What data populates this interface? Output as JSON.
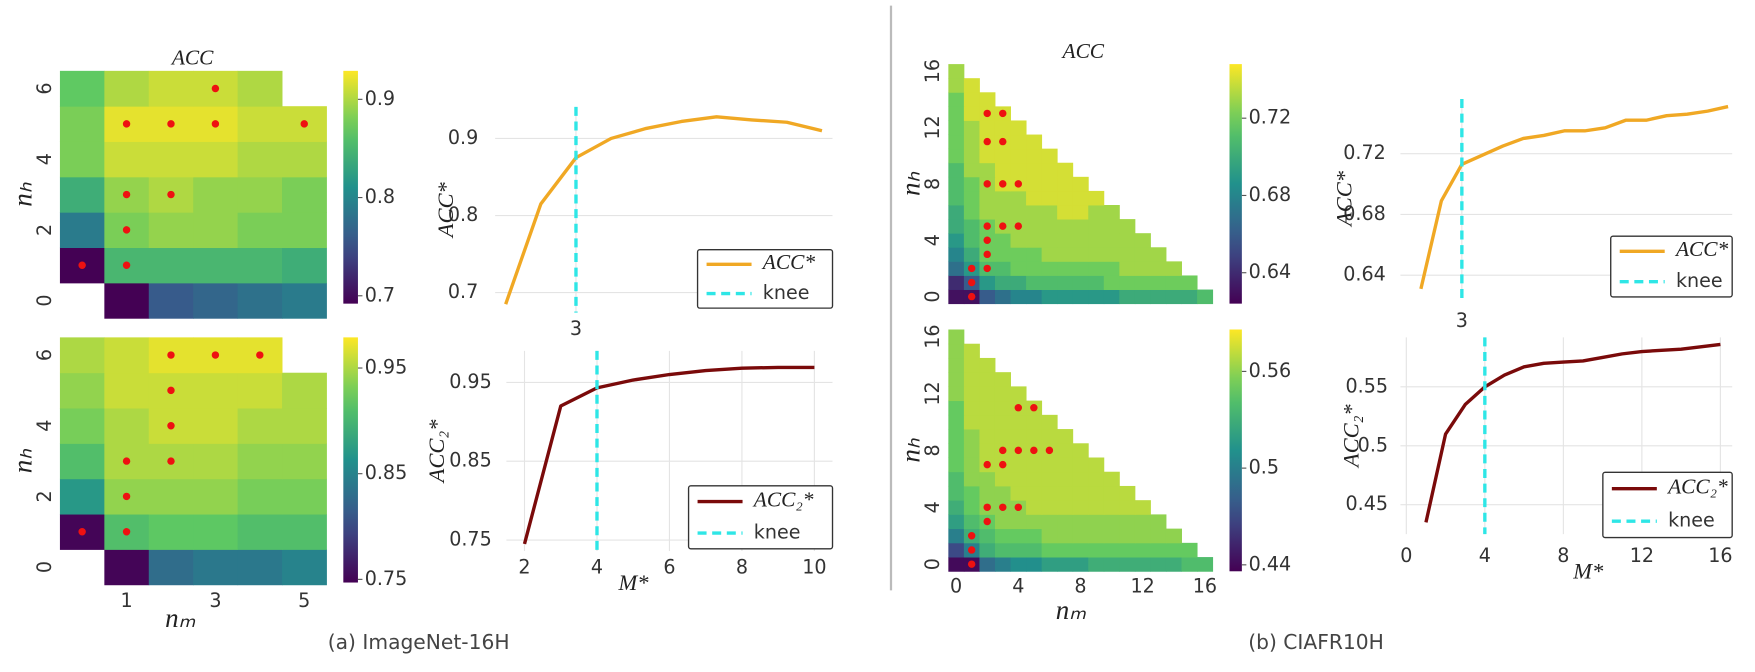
{
  "captions": [
    "(a) ImageNet-16H",
    "(b) CIAFR10H"
  ],
  "chart_data": [
    {
      "type": "heatmap",
      "title": "ACC",
      "ylabel": "nₕ",
      "colormap": "viridis",
      "xlim": [
        -0.5,
        5.5
      ],
      "ylim": [
        -0.5,
        6.5
      ],
      "yticks": [
        0,
        2,
        4,
        6
      ],
      "clim": [
        0.692,
        0.929
      ],
      "cticks": [
        0.7,
        0.8,
        0.9
      ],
      "marker_color": "#ee1111",
      "values": [
        [
          null,
          0.69,
          0.76,
          0.77,
          0.78,
          0.79
        ],
        [
          0.68,
          0.85,
          0.85,
          0.85,
          0.85,
          0.84
        ],
        [
          0.79,
          0.88,
          0.89,
          0.89,
          0.88,
          0.88
        ],
        [
          0.84,
          0.89,
          0.9,
          0.89,
          0.89,
          0.88
        ],
        [
          0.88,
          0.91,
          0.91,
          0.91,
          0.9,
          0.9
        ],
        [
          0.88,
          0.92,
          0.92,
          0.92,
          0.91,
          0.91
        ],
        [
          0.87,
          0.9,
          0.91,
          0.91,
          0.9,
          null
        ]
      ],
      "markers": [
        [
          0,
          1
        ],
        [
          1,
          1
        ],
        [
          1,
          2
        ],
        [
          1,
          3
        ],
        [
          2,
          3
        ],
        [
          1,
          5
        ],
        [
          2,
          5
        ],
        [
          3,
          5
        ],
        [
          5,
          5
        ],
        [
          3,
          6
        ]
      ]
    },
    {
      "type": "line",
      "ylabel": "ACC*",
      "x": [
        1,
        2,
        3,
        4,
        5,
        6,
        7,
        8,
        9,
        10
      ],
      "series": [
        {
          "name": "ACC*",
          "color": "#f0a824",
          "values": [
            0.685,
            0.815,
            0.875,
            0.9,
            0.913,
            0.922,
            0.928,
            0.924,
            0.921,
            0.91
          ]
        }
      ],
      "knee": {
        "x": 3,
        "label": "knee",
        "color": "#2ee6e6"
      },
      "xlim": [
        0.7,
        10.3
      ],
      "xticks": [
        3
      ],
      "ylim": [
        0.674,
        0.941
      ],
      "yticks": [
        0.7,
        0.8,
        0.9
      ],
      "grid": true,
      "legend": "lower right"
    },
    {
      "type": "heatmap",
      "xlabel": "nₘ",
      "ylabel": "nₕ",
      "colormap": "viridis",
      "xlim": [
        -0.5,
        5.5
      ],
      "ylim": [
        -0.5,
        6.5
      ],
      "xticks": [
        1,
        3,
        5
      ],
      "yticks": [
        0,
        2,
        4,
        6
      ],
      "clim": [
        0.747,
        0.979
      ],
      "cticks": [
        0.75,
        0.85,
        0.95
      ],
      "marker_color": "#ee1111",
      "values": [
        [
          null,
          0.75,
          0.83,
          0.84,
          0.84,
          0.85
        ],
        [
          0.75,
          0.91,
          0.92,
          0.92,
          0.91,
          0.91
        ],
        [
          0.87,
          0.94,
          0.94,
          0.94,
          0.93,
          0.93
        ],
        [
          0.91,
          0.95,
          0.95,
          0.95,
          0.94,
          0.94
        ],
        [
          0.93,
          0.95,
          0.96,
          0.96,
          0.95,
          0.95
        ],
        [
          0.94,
          0.96,
          0.96,
          0.96,
          0.96,
          0.95
        ],
        [
          0.95,
          0.96,
          0.97,
          0.97,
          0.97,
          null
        ]
      ],
      "markers": [
        [
          0,
          1
        ],
        [
          1,
          1
        ],
        [
          1,
          2
        ],
        [
          1,
          3
        ],
        [
          2,
          3
        ],
        [
          2,
          4
        ],
        [
          2,
          5
        ],
        [
          2,
          6
        ],
        [
          3,
          6
        ],
        [
          4,
          6
        ]
      ]
    },
    {
      "type": "line",
      "ylabel": "ACC₂*",
      "xlabel": "M*",
      "x": [
        2,
        3,
        4,
        5,
        6,
        7,
        8,
        9,
        10
      ],
      "series": [
        {
          "name": "ACC₂*",
          "color": "#7a0a0a",
          "values": [
            0.745,
            0.92,
            0.943,
            0.953,
            0.96,
            0.965,
            0.968,
            0.969,
            0.969
          ]
        }
      ],
      "knee": {
        "x": 4,
        "label": "knee",
        "color": "#2ee6e6"
      },
      "xlim": [
        1.5,
        10.5
      ],
      "xticks": [
        2,
        4,
        6,
        8,
        10
      ],
      "ylim": [
        0.736,
        0.99
      ],
      "yticks": [
        0.75,
        0.85,
        0.95
      ],
      "grid": true,
      "legend": "lower right"
    },
    {
      "type": "heatmap",
      "title": "ACC",
      "ylabel": "nₕ",
      "colormap": "viridis",
      "xlim": [
        -0.5,
        16.5
      ],
      "ylim": [
        -0.5,
        16.5
      ],
      "yticks": [
        0,
        4,
        8,
        12,
        16
      ],
      "clim": [
        0.624,
        0.748
      ],
      "cticks": [
        0.64,
        0.68,
        0.72
      ],
      "marker_color": "#ee1111",
      "values": [
        [
          0.63,
          0.63,
          0.66,
          0.67,
          0.68,
          0.68,
          0.69,
          0.69,
          0.69,
          0.69,
          0.69,
          0.7,
          0.7,
          0.7,
          0.7,
          0.7,
          0.71
        ],
        [
          0.64,
          0.66,
          0.69,
          0.7,
          0.7,
          0.71,
          0.71,
          0.71,
          0.71,
          0.71,
          0.72,
          0.72,
          0.72,
          0.72,
          0.72,
          0.72
        ],
        [
          0.67,
          0.69,
          0.71,
          0.71,
          0.72,
          0.72,
          0.72,
          0.72,
          0.72,
          0.72,
          0.72,
          0.73,
          0.73,
          0.73,
          0.73
        ],
        [
          0.68,
          0.7,
          0.72,
          0.72,
          0.72,
          0.72,
          0.73,
          0.73,
          0.73,
          0.73,
          0.73,
          0.73,
          0.73,
          0.73
        ],
        [
          0.69,
          0.71,
          0.72,
          0.72,
          0.73,
          0.73,
          0.73,
          0.73,
          0.73,
          0.73,
          0.73,
          0.73,
          0.73
        ],
        [
          0.7,
          0.71,
          0.72,
          0.73,
          0.73,
          0.73,
          0.73,
          0.73,
          0.73,
          0.73,
          0.73,
          0.73
        ],
        [
          0.7,
          0.72,
          0.73,
          0.73,
          0.73,
          0.73,
          0.73,
          0.74,
          0.74,
          0.73,
          0.73
        ],
        [
          0.71,
          0.72,
          0.73,
          0.73,
          0.73,
          0.74,
          0.74,
          0.74,
          0.74,
          0.74
        ],
        [
          0.71,
          0.72,
          0.73,
          0.74,
          0.74,
          0.74,
          0.74,
          0.74,
          0.74
        ],
        [
          0.71,
          0.73,
          0.73,
          0.74,
          0.74,
          0.74,
          0.74,
          0.74
        ],
        [
          0.72,
          0.73,
          0.74,
          0.74,
          0.74,
          0.74,
          0.74
        ],
        [
          0.72,
          0.73,
          0.74,
          0.74,
          0.74,
          0.74
        ],
        [
          0.72,
          0.73,
          0.74,
          0.74,
          0.74
        ],
        [
          0.72,
          0.74,
          0.74,
          0.74
        ],
        [
          0.72,
          0.74,
          0.74
        ],
        [
          0.73,
          0.74
        ],
        [
          0.73
        ]
      ],
      "markers": [
        [
          1,
          0
        ],
        [
          1,
          1
        ],
        [
          1,
          2
        ],
        [
          2,
          2
        ],
        [
          2,
          3
        ],
        [
          2,
          4
        ],
        [
          2,
          5
        ],
        [
          3,
          5
        ],
        [
          4,
          5
        ],
        [
          2,
          8
        ],
        [
          3,
          8
        ],
        [
          4,
          8
        ],
        [
          2,
          11
        ],
        [
          3,
          11
        ],
        [
          2,
          13
        ],
        [
          3,
          13
        ]
      ]
    },
    {
      "type": "line",
      "ylabel": "ACC*",
      "x": [
        1,
        2,
        3,
        4,
        5,
        6,
        7,
        8,
        9,
        10,
        11,
        12,
        13,
        14,
        15,
        16
      ],
      "series": [
        {
          "name": "ACC*",
          "color": "#f0a824",
          "values": [
            0.631,
            0.689,
            0.713,
            0.719,
            0.725,
            0.73,
            0.732,
            0.735,
            0.735,
            0.737,
            0.742,
            0.742,
            0.745,
            0.746,
            0.748,
            0.751
          ]
        }
      ],
      "knee": {
        "x": 3,
        "label": "knee",
        "color": "#2ee6e6"
      },
      "xlim": [
        0,
        16.2
      ],
      "xticks": [
        3
      ],
      "ylim": [
        0.625,
        0.756
      ],
      "yticks": [
        0.64,
        0.68,
        0.72
      ],
      "grid": true,
      "legend": "lower right"
    },
    {
      "type": "heatmap",
      "xlabel": "nₘ",
      "ylabel": "nₕ",
      "colormap": "viridis",
      "xlim": [
        -0.5,
        16.5
      ],
      "ylim": [
        -0.5,
        16.5
      ],
      "xticks": [
        0,
        4,
        8,
        12,
        16
      ],
      "yticks": [
        0,
        4,
        8,
        12,
        16
      ],
      "clim": [
        0.436,
        0.586
      ],
      "cticks": [
        0.44,
        0.5,
        0.56
      ],
      "marker_color": "#ee1111",
      "values": [
        [
          0.44,
          0.44,
          0.49,
          0.5,
          0.51,
          0.51,
          0.52,
          0.52,
          0.52,
          0.53,
          0.53,
          0.53,
          0.53,
          0.53,
          0.53,
          0.54,
          0.54
        ],
        [
          0.47,
          0.5,
          0.53,
          0.54,
          0.54,
          0.54,
          0.55,
          0.55,
          0.55,
          0.55,
          0.55,
          0.55,
          0.55,
          0.55,
          0.55,
          0.55
        ],
        [
          0.5,
          0.53,
          0.54,
          0.55,
          0.55,
          0.55,
          0.56,
          0.56,
          0.56,
          0.56,
          0.56,
          0.56,
          0.56,
          0.56,
          0.56
        ],
        [
          0.52,
          0.54,
          0.55,
          0.56,
          0.56,
          0.56,
          0.56,
          0.56,
          0.56,
          0.56,
          0.56,
          0.56,
          0.56,
          0.56
        ],
        [
          0.53,
          0.55,
          0.56,
          0.56,
          0.56,
          0.57,
          0.57,
          0.57,
          0.57,
          0.57,
          0.57,
          0.57,
          0.57
        ],
        [
          0.54,
          0.55,
          0.56,
          0.56,
          0.57,
          0.57,
          0.57,
          0.57,
          0.57,
          0.57,
          0.57,
          0.57
        ],
        [
          0.54,
          0.56,
          0.56,
          0.57,
          0.57,
          0.57,
          0.57,
          0.57,
          0.57,
          0.57,
          0.57
        ],
        [
          0.55,
          0.56,
          0.57,
          0.57,
          0.57,
          0.57,
          0.57,
          0.57,
          0.57,
          0.57
        ],
        [
          0.55,
          0.56,
          0.57,
          0.57,
          0.57,
          0.57,
          0.57,
          0.57,
          0.57
        ],
        [
          0.55,
          0.56,
          0.57,
          0.57,
          0.57,
          0.57,
          0.57,
          0.57
        ],
        [
          0.55,
          0.57,
          0.57,
          0.57,
          0.57,
          0.57,
          0.57
        ],
        [
          0.55,
          0.57,
          0.57,
          0.57,
          0.57,
          0.57
        ],
        [
          0.56,
          0.57,
          0.57,
          0.57,
          0.57
        ],
        [
          0.56,
          0.57,
          0.57,
          0.57
        ],
        [
          0.56,
          0.57,
          0.57
        ],
        [
          0.56,
          0.57
        ],
        [
          0.56
        ]
      ],
      "markers": [
        [
          1,
          0
        ],
        [
          1,
          1
        ],
        [
          1,
          2
        ],
        [
          2,
          3
        ],
        [
          2,
          4
        ],
        [
          3,
          4
        ],
        [
          4,
          4
        ],
        [
          2,
          7
        ],
        [
          3,
          7
        ],
        [
          3,
          8
        ],
        [
          4,
          8
        ],
        [
          5,
          8
        ],
        [
          6,
          8
        ],
        [
          4,
          11
        ],
        [
          5,
          11
        ]
      ]
    },
    {
      "type": "line",
      "ylabel": "ACC₂*",
      "xlabel": "M*",
      "x": [
        1,
        2,
        3,
        4,
        5,
        6,
        7,
        8,
        9,
        10,
        11,
        12,
        13,
        14,
        15,
        16
      ],
      "series": [
        {
          "name": "ACC₂*",
          "color": "#7a0a0a",
          "values": [
            0.435,
            0.51,
            0.535,
            0.55,
            0.56,
            0.567,
            0.57,
            0.571,
            0.572,
            0.575,
            0.578,
            0.58,
            0.581,
            0.582,
            0.584,
            0.586
          ]
        }
      ],
      "knee": {
        "x": 4,
        "label": "knee",
        "color": "#2ee6e6"
      },
      "xlim": [
        -0.3,
        16.6
      ],
      "xticks": [
        0,
        4,
        8,
        12,
        16
      ],
      "ylim": [
        0.425,
        0.592
      ],
      "yticks": [
        0.45,
        0.5,
        0.55
      ],
      "grid": true,
      "legend": "lower right"
    }
  ]
}
